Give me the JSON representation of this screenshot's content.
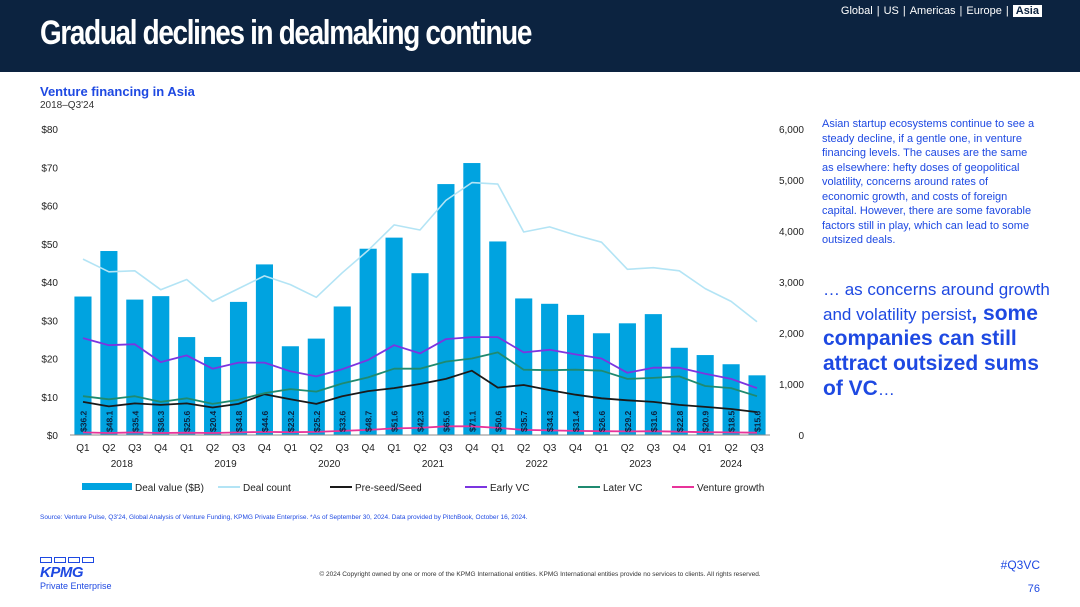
{
  "header": {
    "title": "Gradual declines in dealmaking continue",
    "regions": [
      "Global",
      "US",
      "Americas",
      "Europe",
      "Asia"
    ],
    "active_region": "Asia"
  },
  "chart_data": {
    "type": "bar",
    "title": "Venture financing in Asia",
    "subtitle": "2018–Q3'24",
    "quarters": [
      "Q1",
      "Q2",
      "Q3",
      "Q4",
      "Q1",
      "Q2",
      "Q3",
      "Q4",
      "Q1",
      "Q2",
      "Q3",
      "Q4",
      "Q1",
      "Q2",
      "Q3",
      "Q4",
      "Q1",
      "Q2",
      "Q3",
      "Q4",
      "Q1",
      "Q2",
      "Q3",
      "Q4",
      "Q1",
      "Q2",
      "Q3"
    ],
    "years": [
      {
        "label": "2018",
        "start": 0,
        "end": 3
      },
      {
        "label": "2019",
        "start": 4,
        "end": 7
      },
      {
        "label": "2020",
        "start": 8,
        "end": 11
      },
      {
        "label": "2021",
        "start": 12,
        "end": 15
      },
      {
        "label": "2022",
        "start": 16,
        "end": 19
      },
      {
        "label": "2023",
        "start": 20,
        "end": 23
      },
      {
        "label": "2024",
        "start": 24,
        "end": 26
      }
    ],
    "left_axis": {
      "ticks": [
        "$0",
        "$10",
        "$20",
        "$30",
        "$40",
        "$50",
        "$60",
        "$70",
        "$80"
      ],
      "range": [
        0,
        80
      ]
    },
    "right_axis": {
      "ticks": [
        "0",
        "1,000",
        "2,000",
        "3,000",
        "4,000",
        "5,000",
        "6,000"
      ],
      "range": [
        0,
        6000
      ]
    },
    "bar_series": {
      "name": "Deal value ($B)",
      "color": "#00a3e0",
      "values": [
        36.2,
        48.1,
        35.4,
        36.3,
        25.6,
        20.4,
        34.8,
        44.6,
        23.2,
        25.2,
        33.6,
        48.7,
        51.6,
        42.3,
        65.6,
        71.1,
        50.6,
        35.7,
        34.3,
        31.4,
        26.6,
        29.2,
        31.6,
        22.8,
        20.9,
        18.5,
        15.6
      ],
      "labels": [
        "$36.2",
        "$48.1",
        "$35.4",
        "$36.3",
        "$25.6",
        "$20.4",
        "$34.8",
        "$44.6",
        "$23.2",
        "$25.2",
        "$33.6",
        "$48.7",
        "$51.6",
        "$42.3",
        "$65.6",
        "$71.1",
        "$50.6",
        "$35.7",
        "$34.3",
        "$31.4",
        "$26.6",
        "$29.2",
        "$31.6",
        "$22.8",
        "$20.9",
        "$18.5",
        "$15.6"
      ]
    },
    "line_series": [
      {
        "name": "Deal count",
        "color": "#b3e4f5",
        "values": [
          3450,
          3200,
          3220,
          2850,
          3050,
          2620,
          2870,
          3120,
          2950,
          2700,
          3180,
          3620,
          4120,
          4020,
          4600,
          4950,
          4920,
          3980,
          4080,
          3920,
          3780,
          3250,
          3280,
          3220,
          2870,
          2620,
          2220
        ]
      },
      {
        "name": "Pre-seed/Seed",
        "color": "#1a1a1a",
        "values": [
          650,
          560,
          620,
          590,
          620,
          540,
          610,
          800,
          700,
          610,
          760,
          860,
          920,
          1000,
          1100,
          1260,
          930,
          980,
          880,
          790,
          720,
          680,
          650,
          590,
          550,
          510,
          450
        ]
      },
      {
        "name": "Early VC",
        "color": "#7b35e0",
        "values": [
          1900,
          1760,
          1780,
          1430,
          1560,
          1300,
          1420,
          1420,
          1250,
          1150,
          1290,
          1470,
          1760,
          1600,
          1880,
          1920,
          1920,
          1620,
          1670,
          1580,
          1500,
          1220,
          1320,
          1320,
          1200,
          1100,
          920
        ]
      },
      {
        "name": "Later VC",
        "color": "#1f8a70",
        "values": [
          760,
          700,
          760,
          650,
          720,
          610,
          690,
          820,
          900,
          850,
          1010,
          1130,
          1300,
          1300,
          1440,
          1500,
          1620,
          1280,
          1270,
          1280,
          1260,
          1100,
          1120,
          1150,
          960,
          920,
          760
        ]
      },
      {
        "name": "Venture growth",
        "color": "#e8339a",
        "values": [
          50,
          40,
          50,
          40,
          45,
          40,
          50,
          60,
          55,
          60,
          80,
          100,
          130,
          140,
          170,
          170,
          140,
          100,
          90,
          80,
          75,
          70,
          75,
          65,
          55,
          50,
          45
        ]
      }
    ],
    "legend": [
      "Deal value ($B)",
      "Deal count",
      "Pre-seed/Seed",
      "Early VC",
      "Later VC",
      "Venture growth"
    ]
  },
  "side_text": "Asian startup ecosystems continue to see a steady decline, if a gentle one, in venture financing levels. The causes are the same as elsewhere: hefty doses of geopolitical volatility, concerns around rates of economic growth, and costs of foreign capital. However, there are some favorable factors still in play, which can lead to some outsized deals.",
  "quote": {
    "lead": "… as concerns around growth and volatility persist",
    "comma": ",",
    "bold": " some companies can still attract outsized sums of VC",
    "tail": "…"
  },
  "footer": {
    "source": "Source: Venture Pulse, Q3'24, Global Analysis of Venture Funding, KPMG Private Enterprise. *As of September 30, 2024. Data provided by PitchBook, October 16, 2024.",
    "copyright": "© 2024 Copyright owned by one or more of the KPMG International entities. KPMG International entities provide no services to clients. All rights reserved.",
    "hashtag": "#Q3VC",
    "page": "76",
    "logo": "KPMG",
    "logo_sub": "Private Enterprise"
  }
}
